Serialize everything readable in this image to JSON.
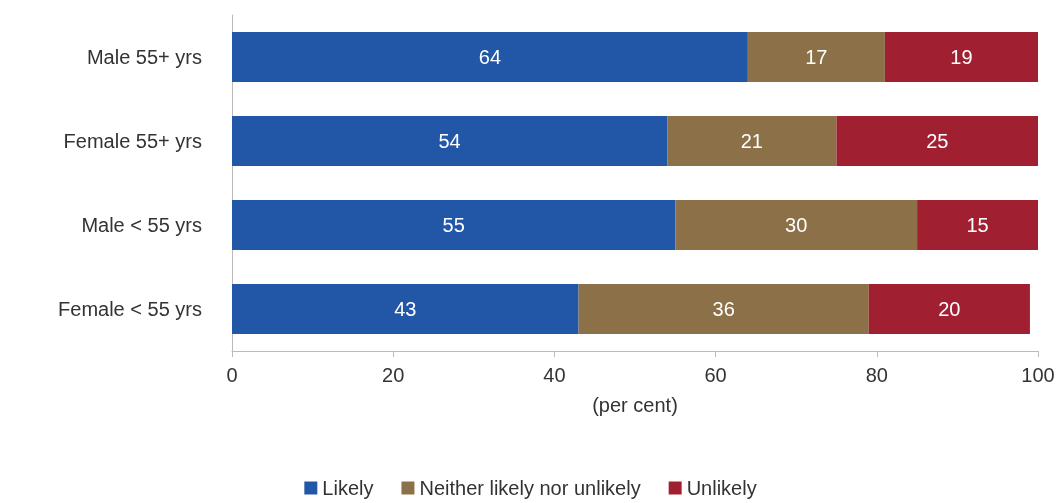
{
  "chart_data": {
    "type": "bar",
    "orientation": "horizontal",
    "stacked": true,
    "data_labels": true,
    "grid": false,
    "legend": "bottom",
    "xlabel": "(per cent)",
    "categories": [
      "Male 55+ yrs",
      "Female 55+ yrs",
      "Male < 55 yrs",
      "Female < 55 yrs"
    ],
    "xlim": [
      0,
      100
    ],
    "xticks": [
      0,
      20,
      40,
      60,
      80,
      100
    ],
    "series": [
      {
        "name": "Likely",
        "color": "#2257a8",
        "values": [
          64,
          54,
          55,
          43
        ]
      },
      {
        "name": "Neither likely nor unlikely",
        "color": "#8b7048",
        "values": [
          17,
          21,
          30,
          36
        ]
      },
      {
        "name": "Unlikely",
        "color": "#a02032",
        "values": [
          19,
          25,
          15,
          20
        ]
      }
    ]
  }
}
